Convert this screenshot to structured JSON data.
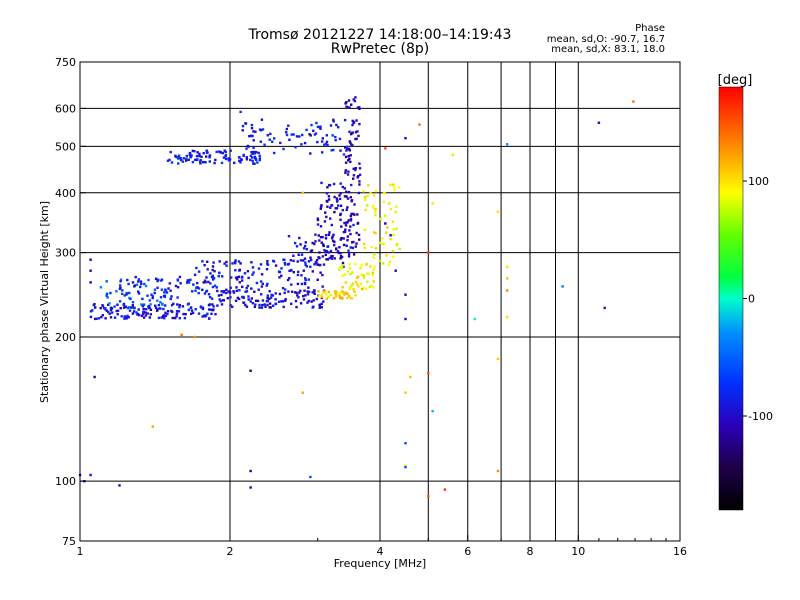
{
  "chart_data": {
    "type": "scatter",
    "title": "Tromsø 20121227 14:18:00–14:19:43",
    "subtitle": "RwPretec (8p)",
    "xlabel": "Frequency [MHz]",
    "ylabel": "Stationary phase Virtual Height [km]",
    "x_scale": "log",
    "y_scale": "log",
    "xlim": [
      1,
      16
    ],
    "ylim": [
      75,
      750
    ],
    "xticks": [
      1,
      2,
      4,
      6,
      8,
      10,
      16
    ],
    "yticks": [
      75,
      100,
      200,
      300,
      400,
      500,
      600,
      750
    ],
    "x_gridlines": [
      2,
      4,
      5,
      6,
      7,
      8,
      9,
      10
    ],
    "y_gridlines": [
      100,
      200,
      300,
      400,
      500,
      600
    ],
    "grid": true,
    "stats": {
      "heading": "Phase",
      "line_o": "mean, sd,O: -90.7, 16.7",
      "line_x": "mean, sd,X: 83.1, 18.0"
    },
    "colorbar": {
      "label": "[deg]",
      "min": -180,
      "max": 180,
      "ticks": [
        100,
        0,
        -100
      ]
    },
    "traces": [
      {
        "x_range": [
          1.05,
          1.9
        ],
        "y_range": [
          218,
          235
        ],
        "phase": -90,
        "n": 150
      },
      {
        "x_range": [
          1.1,
          1.5
        ],
        "y_range": [
          228,
          265
        ],
        "phase": -55,
        "n": 40
      },
      {
        "x_range": [
          1.2,
          1.9
        ],
        "y_range": [
          240,
          268
        ],
        "phase": -85,
        "n": 70
      },
      {
        "x_range": [
          1.9,
          3.1
        ],
        "y_range": [
          230,
          250
        ],
        "phase": -95,
        "n": 110
      },
      {
        "x_range": [
          1.7,
          3.1
        ],
        "y_range": [
          248,
          290
        ],
        "phase": -90,
        "n": 130
      },
      {
        "x_range": [
          2.6,
          3.5
        ],
        "y_range": [
          280,
          330
        ],
        "phase": -100,
        "n": 60
      },
      {
        "x_range": [
          3.0,
          3.65
        ],
        "y_range": [
          290,
          420
        ],
        "phase": -105,
        "n": 120
      },
      {
        "x_range": [
          3.4,
          3.65
        ],
        "y_range": [
          420,
          640
        ],
        "phase": -110,
        "n": 60
      },
      {
        "x_range": [
          1.5,
          2.3
        ],
        "y_range": [
          460,
          490
        ],
        "phase": -85,
        "n": 100
      },
      {
        "x_range": [
          2.1,
          3.5
        ],
        "y_range": [
          480,
          570
        ],
        "phase": -85,
        "n": 80
      },
      {
        "x_range": [
          3.0,
          3.6
        ],
        "y_range": [
          240,
          250
        ],
        "phase": 100,
        "n": 40
      },
      {
        "x_range": [
          3.3,
          3.9
        ],
        "y_range": [
          250,
          285
        ],
        "phase": 95,
        "n": 50
      },
      {
        "x_range": [
          3.7,
          4.4
        ],
        "y_range": [
          280,
          420
        ],
        "phase": 90,
        "n": 60
      }
    ],
    "scattered_points": [
      {
        "x": 1.0,
        "y": 103,
        "phase": -110
      },
      {
        "x": 1.02,
        "y": 100,
        "phase": -100
      },
      {
        "x": 1.05,
        "y": 103,
        "phase": -95
      },
      {
        "x": 1.05,
        "y": 290,
        "phase": -115
      },
      {
        "x": 1.05,
        "y": 275,
        "phase": -110
      },
      {
        "x": 1.05,
        "y": 260,
        "phase": -110
      },
      {
        "x": 1.07,
        "y": 165,
        "phase": -115
      },
      {
        "x": 1.2,
        "y": 98,
        "phase": -100
      },
      {
        "x": 1.4,
        "y": 130,
        "phase": 120
      },
      {
        "x": 1.6,
        "y": 202,
        "phase": 140
      },
      {
        "x": 1.7,
        "y": 200,
        "phase": 130
      },
      {
        "x": 2.1,
        "y": 590,
        "phase": -70
      },
      {
        "x": 2.2,
        "y": 170,
        "phase": -130
      },
      {
        "x": 2.2,
        "y": 105,
        "phase": -120
      },
      {
        "x": 2.2,
        "y": 97,
        "phase": -120
      },
      {
        "x": 2.8,
        "y": 153,
        "phase": 120
      },
      {
        "x": 2.8,
        "y": 400,
        "phase": 110
      },
      {
        "x": 2.9,
        "y": 102,
        "phase": -60
      },
      {
        "x": 4.1,
        "y": 495,
        "phase": 150
      },
      {
        "x": 4.1,
        "y": 345,
        "phase": -130
      },
      {
        "x": 4.2,
        "y": 326,
        "phase": -120
      },
      {
        "x": 4.3,
        "y": 275,
        "phase": -120
      },
      {
        "x": 4.5,
        "y": 245,
        "phase": -100
      },
      {
        "x": 4.5,
        "y": 218,
        "phase": -100
      },
      {
        "x": 4.5,
        "y": 520,
        "phase": -100
      },
      {
        "x": 4.5,
        "y": 153,
        "phase": 110
      },
      {
        "x": 4.5,
        "y": 120,
        "phase": -60
      },
      {
        "x": 4.5,
        "y": 108,
        "phase": 90
      },
      {
        "x": 4.5,
        "y": 107,
        "phase": -60
      },
      {
        "x": 4.6,
        "y": 165,
        "phase": 115
      },
      {
        "x": 4.8,
        "y": 555,
        "phase": 140
      },
      {
        "x": 5.0,
        "y": 300,
        "phase": 160
      },
      {
        "x": 5.0,
        "y": 168,
        "phase": 150
      },
      {
        "x": 5.0,
        "y": 93,
        "phase": 150
      },
      {
        "x": 5.1,
        "y": 380,
        "phase": 100
      },
      {
        "x": 5.1,
        "y": 140,
        "phase": -20
      },
      {
        "x": 5.4,
        "y": 96,
        "phase": 160
      },
      {
        "x": 5.6,
        "y": 480,
        "phase": 100
      },
      {
        "x": 6.2,
        "y": 218,
        "phase": 10
      },
      {
        "x": 6.9,
        "y": 365,
        "phase": 100
      },
      {
        "x": 6.9,
        "y": 180,
        "phase": 110
      },
      {
        "x": 6.9,
        "y": 105,
        "phase": 130
      },
      {
        "x": 7.2,
        "y": 505,
        "phase": -30
      },
      {
        "x": 7.2,
        "y": 280,
        "phase": 100
      },
      {
        "x": 7.2,
        "y": 265,
        "phase": 110
      },
      {
        "x": 7.2,
        "y": 250,
        "phase": 130
      },
      {
        "x": 7.2,
        "y": 220,
        "phase": 100
      },
      {
        "x": 9.3,
        "y": 255,
        "phase": -40
      },
      {
        "x": 11.0,
        "y": 560,
        "phase": -100
      },
      {
        "x": 11.3,
        "y": 230,
        "phase": -95
      },
      {
        "x": 12.9,
        "y": 620,
        "phase": 140
      }
    ]
  }
}
